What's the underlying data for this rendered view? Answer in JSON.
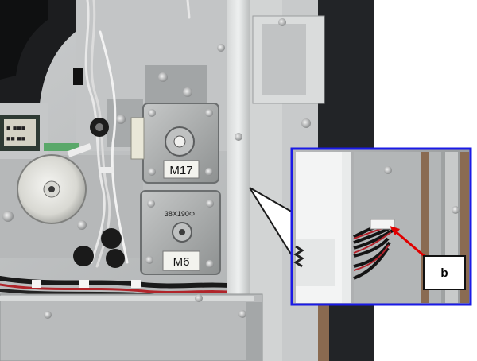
{
  "photo": {
    "motor_upper_label": "M17",
    "motor_lower_label": "M6",
    "motor_lower_sticker": "38X190Φ"
  },
  "callout": {
    "label": "b",
    "frame_color": "#1a1ae6",
    "arrow_color": "#e00000"
  }
}
